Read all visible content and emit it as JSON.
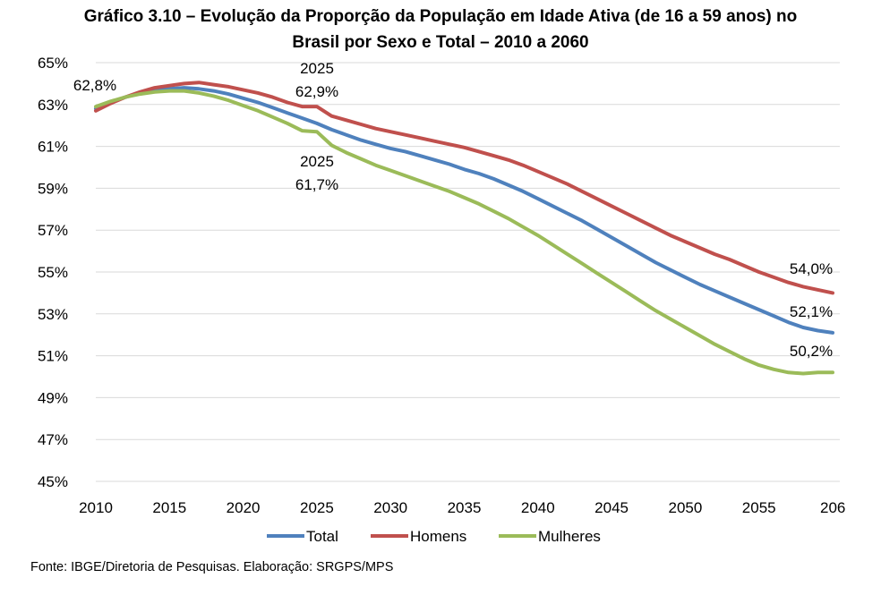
{
  "title_line1": "Gráfico 3.10 – Evolução da Proporção da População em Idade Ativa (de 16 a 59 anos) no",
  "title_line2": "Brasil por Sexo e Total – 2010 a 2060",
  "source": "Fonte: IBGE/Diretoria de Pesquisas. Elaboração: SRGPS/MPS",
  "chart_data": {
    "type": "line",
    "title": "Gráfico 3.10 – Evolução da Proporção da População em Idade Ativa (de 16 a 59 anos) no Brasil por Sexo e Total – 2010 a 2060",
    "xlabel": "",
    "ylabel": "",
    "ylim": [
      45,
      65
    ],
    "xlim": [
      2010,
      2060
    ],
    "grid": true,
    "legend_position": "bottom",
    "y_ticks": [
      "65%",
      "63%",
      "61%",
      "59%",
      "57%",
      "55%",
      "53%",
      "51%",
      "49%",
      "47%",
      "45%"
    ],
    "x_ticks": [
      "2010",
      "2015",
      "2020",
      "2025",
      "2030",
      "2035",
      "2040",
      "2045",
      "2050",
      "2055",
      "206"
    ],
    "x": [
      2010,
      2011,
      2012,
      2013,
      2014,
      2015,
      2016,
      2017,
      2018,
      2019,
      2020,
      2021,
      2022,
      2023,
      2024,
      2025,
      2026,
      2027,
      2028,
      2029,
      2030,
      2031,
      2032,
      2033,
      2034,
      2035,
      2036,
      2037,
      2038,
      2039,
      2040,
      2041,
      2042,
      2043,
      2044,
      2045,
      2046,
      2047,
      2048,
      2049,
      2050,
      2051,
      2052,
      2053,
      2054,
      2055,
      2056,
      2057,
      2058,
      2059,
      2060
    ],
    "series": [
      {
        "name": "Total",
        "color": "#4F81BD",
        "values": [
          62.8,
          63.1,
          63.35,
          63.55,
          63.7,
          63.75,
          63.8,
          63.75,
          63.65,
          63.5,
          63.3,
          63.1,
          62.85,
          62.6,
          62.35,
          62.1,
          61.8,
          61.55,
          61.3,
          61.1,
          60.9,
          60.75,
          60.55,
          60.35,
          60.15,
          59.9,
          59.7,
          59.45,
          59.15,
          58.85,
          58.5,
          58.15,
          57.8,
          57.45,
          57.05,
          56.65,
          56.25,
          55.85,
          55.45,
          55.1,
          54.75,
          54.4,
          54.1,
          53.8,
          53.5,
          53.2,
          52.9,
          52.6,
          52.35,
          52.2,
          52.1
        ]
      },
      {
        "name": "Homens",
        "color": "#C0504D",
        "values": [
          62.7,
          63.05,
          63.35,
          63.6,
          63.8,
          63.9,
          64.0,
          64.05,
          63.95,
          63.85,
          63.7,
          63.55,
          63.35,
          63.1,
          62.9,
          62.9,
          62.45,
          62.25,
          62.05,
          61.85,
          61.7,
          61.55,
          61.4,
          61.25,
          61.1,
          60.95,
          60.75,
          60.55,
          60.35,
          60.1,
          59.8,
          59.5,
          59.2,
          58.85,
          58.5,
          58.15,
          57.8,
          57.45,
          57.1,
          56.75,
          56.45,
          56.15,
          55.85,
          55.6,
          55.3,
          55.0,
          54.75,
          54.5,
          54.3,
          54.15,
          54.0
        ]
      },
      {
        "name": "Mulheres",
        "color": "#9BBB59",
        "values": [
          62.9,
          63.15,
          63.35,
          63.5,
          63.6,
          63.65,
          63.65,
          63.55,
          63.4,
          63.2,
          62.95,
          62.7,
          62.4,
          62.1,
          61.75,
          61.7,
          61.05,
          60.7,
          60.4,
          60.1,
          59.85,
          59.6,
          59.35,
          59.1,
          58.85,
          58.55,
          58.25,
          57.9,
          57.55,
          57.15,
          56.75,
          56.3,
          55.85,
          55.4,
          54.95,
          54.5,
          54.05,
          53.6,
          53.15,
          52.75,
          52.35,
          51.95,
          51.55,
          51.2,
          50.85,
          50.55,
          50.35,
          50.2,
          50.15,
          50.2,
          50.2
        ]
      }
    ],
    "annotations": [
      {
        "id": "start",
        "lines": [
          "62,8%"
        ]
      },
      {
        "id": "homens2025",
        "lines": [
          "2025",
          "62,9%"
        ]
      },
      {
        "id": "mulheres2025",
        "lines": [
          "2025",
          "61,7%"
        ]
      },
      {
        "id": "homens2060",
        "lines": [
          "54,0%"
        ]
      },
      {
        "id": "total2060",
        "lines": [
          "52,1%"
        ]
      },
      {
        "id": "mulheres2060",
        "lines": [
          "50,2%"
        ]
      }
    ]
  }
}
